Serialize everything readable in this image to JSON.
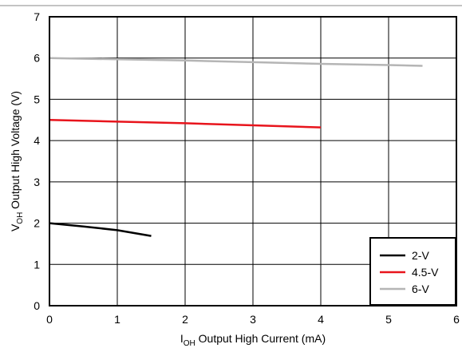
{
  "chart_data": {
    "type": "line",
    "title": "",
    "xlabel": {
      "main": "I",
      "sub": "OH",
      "rest": " Output High Current (mA)"
    },
    "ylabel": {
      "main": "V",
      "sub": "OH",
      "rest": " Output High Voltage (V)"
    },
    "xlim": [
      0,
      6
    ],
    "ylim": [
      0,
      7
    ],
    "x_ticks": [
      "0",
      "1",
      "2",
      "3",
      "4",
      "5",
      "6"
    ],
    "y_ticks": [
      "0",
      "1",
      "2",
      "3",
      "4",
      "5",
      "6",
      "7"
    ],
    "grid": true,
    "legend_position": "bottom-right",
    "series": [
      {
        "name": "2-V",
        "color": "#000000",
        "x": [
          0,
          0.5,
          1.0,
          1.5
        ],
        "y": [
          2.0,
          1.92,
          1.83,
          1.69
        ]
      },
      {
        "name": "4.5-V",
        "color": "#e8141c",
        "x": [
          0,
          1,
          2,
          3,
          4
        ],
        "y": [
          4.5,
          4.46,
          4.42,
          4.37,
          4.32
        ]
      },
      {
        "name": "6-V",
        "color": "#b5b5b5",
        "x": [
          0,
          1,
          2,
          3,
          4,
          5,
          5.5
        ],
        "y": [
          6.0,
          5.97,
          5.94,
          5.9,
          5.86,
          5.83,
          5.81
        ]
      }
    ]
  }
}
